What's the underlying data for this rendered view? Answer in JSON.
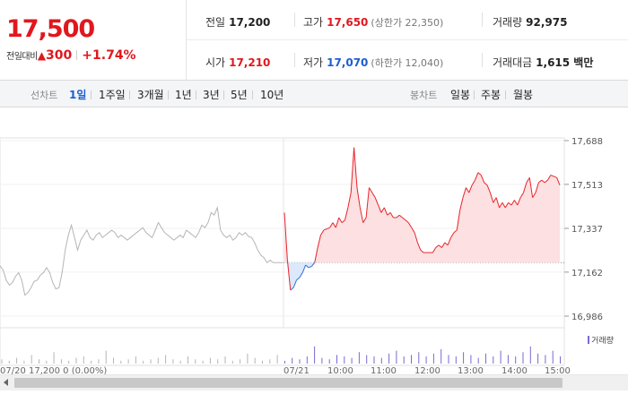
{
  "quote": {
    "current": "17,500",
    "change_label": "전일대비",
    "change_arrow": "▲",
    "change_amount": "300",
    "change_percent": "+1.74%"
  },
  "stats": {
    "prev_close": {
      "label": "전일",
      "value": "17,200"
    },
    "high": {
      "label": "고가",
      "value": "17,650",
      "sub": "(상한가 22,350)"
    },
    "volume": {
      "label": "거래량",
      "value": "92,975"
    },
    "open": {
      "label": "시가",
      "value": "17,210"
    },
    "low": {
      "label": "저가",
      "value": "17,070",
      "sub": "(하한가 12,040)"
    },
    "turnover": {
      "label": "거래대금",
      "value": "1,615 백만"
    }
  },
  "toolbar": {
    "line_title": "선차트",
    "line_periods": [
      "1일",
      "1주일",
      "3개월",
      "1년",
      "3년",
      "5년",
      "10년"
    ],
    "active_period": "1일",
    "candle_title": "봉차트",
    "candle_periods": [
      "일봉",
      "주봉",
      "월봉"
    ]
  },
  "chart_data": {
    "type": "line",
    "title": "",
    "xlabel": "",
    "ylabel": "",
    "y_ticks": [
      "17,688",
      "17,513",
      "17,337",
      "17,162",
      "16,986"
    ],
    "ylim": [
      16986,
      17688
    ],
    "base_price": 17200,
    "series": [
      {
        "values_prev": [
          17188,
          17170,
          17130,
          17110,
          17120,
          17145,
          17160,
          17130,
          17070,
          17080,
          17100,
          17125,
          17130,
          17150,
          17160,
          17180,
          17160,
          17120,
          17095,
          17100,
          17160,
          17250,
          17310,
          17350,
          17300,
          17250,
          17290,
          17310,
          17330,
          17300,
          17290,
          17310,
          17320,
          17300,
          17310,
          17320,
          17330,
          17320,
          17300,
          17310,
          17300,
          17290,
          17300,
          17310,
          17320,
          17330,
          17340,
          17320,
          17310,
          17300,
          17330,
          17360,
          17340,
          17320,
          17310,
          17300,
          17290,
          17300,
          17310,
          17300,
          17330,
          17320,
          17310,
          17300,
          17320,
          17350,
          17340,
          17360,
          17400,
          17390,
          17420,
          17330,
          17310,
          17300,
          17310,
          17290,
          17300,
          17320,
          17310,
          17320,
          17305,
          17300,
          17280,
          17250,
          17230,
          17220,
          17200,
          17210,
          17200,
          17200,
          17200,
          17200
        ],
        "values_today": [
          17400,
          17210,
          17090,
          17100,
          17130,
          17140,
          17160,
          17190,
          17180,
          17185,
          17200,
          17260,
          17310,
          17330,
          17335,
          17340,
          17360,
          17340,
          17380,
          17360,
          17370,
          17420,
          17480,
          17660,
          17500,
          17420,
          17360,
          17380,
          17500,
          17480,
          17460,
          17430,
          17400,
          17420,
          17390,
          17400,
          17380,
          17380,
          17390,
          17380,
          17370,
          17360,
          17340,
          17320,
          17280,
          17250,
          17240,
          17240,
          17240,
          17240,
          17260,
          17270,
          17260,
          17280,
          17270,
          17300,
          17320,
          17330,
          17410,
          17460,
          17500,
          17480,
          17510,
          17530,
          17560,
          17550,
          17520,
          17510,
          17480,
          17440,
          17460,
          17420,
          17440,
          17420,
          17440,
          17430,
          17450,
          17430,
          17460,
          17480,
          17520,
          17540,
          17460,
          17480,
          17520,
          17530,
          17520,
          17530,
          17550,
          17545,
          17540,
          17510
        ]
      }
    ]
  },
  "volume_legend": "거래량",
  "x_axis_partial": [
    "07/20 17,200 0 (0.00%)",
    "07/21",
    "10:00",
    "11:00",
    "12:00",
    "13:00",
    "14:00",
    "15:00"
  ]
}
